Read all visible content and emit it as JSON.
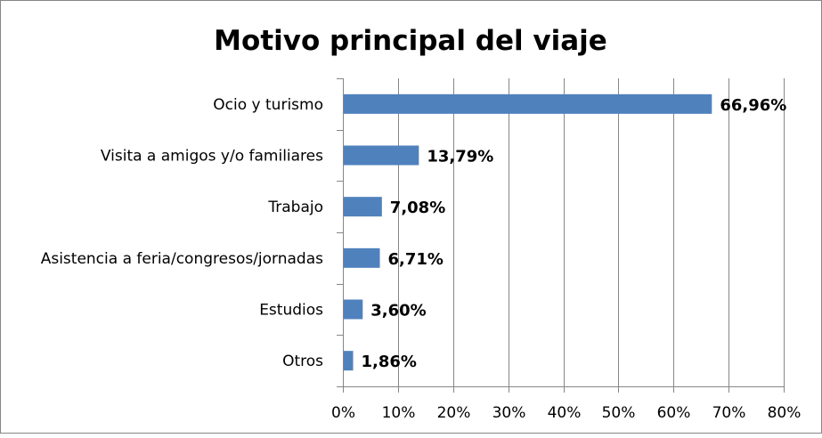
{
  "chart_data": {
    "type": "bar",
    "orientation": "horizontal",
    "title": "Motivo principal del viaje",
    "categories": [
      "Ocio y turismo",
      "Visita a amigos y/o familiares",
      "Trabajo",
      "Asistencia a feria/congresos/jornadas",
      "Estudios",
      "Otros"
    ],
    "values": [
      66.96,
      13.79,
      7.08,
      6.71,
      3.6,
      1.86
    ],
    "data_labels": [
      "66,96%",
      "13,79%",
      "7,08%",
      "6,71%",
      "3,60%",
      "1,86%"
    ],
    "xlim": [
      0,
      80
    ],
    "x_ticks": [
      0,
      10,
      20,
      30,
      40,
      50,
      60,
      70,
      80
    ],
    "x_tick_labels": [
      "0%",
      "10%",
      "20%",
      "30%",
      "40%",
      "50%",
      "60%",
      "70%",
      "80%"
    ],
    "grid": "vertical",
    "legend": "none",
    "bar_color": "#4F81BD",
    "grid_color": "#868686"
  }
}
